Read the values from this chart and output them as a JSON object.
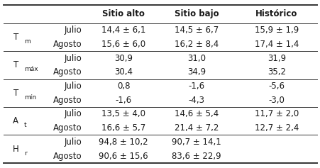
{
  "headers": [
    "Sitio alto",
    "Sitio bajo",
    "Histórico"
  ],
  "rows": [
    [
      "Julio",
      "14,4 ± 6,1",
      "14,5 ± 6,7",
      "15,9 ± 1,9"
    ],
    [
      "Agosto",
      "15,6 ± 6,0",
      "16,2 ± 8,4",
      "17,4 ± 1,4"
    ],
    [
      "Julio",
      "30,9",
      "31,0",
      "31,9"
    ],
    [
      "Agosto",
      "30,4",
      "34,9",
      "35,2"
    ],
    [
      "Julio",
      "0,8",
      "-1,6",
      "-5,6"
    ],
    [
      "Agosto",
      "-1,6",
      "-4,3",
      "-3,0"
    ],
    [
      "Julio",
      "13,5 ± 4,0",
      "14,6 ± 5,4",
      "11,7 ± 2,0"
    ],
    [
      "Agosto",
      "16,6 ± 5,7",
      "21,4 ± 7,2",
      "12,7 ± 2,4"
    ],
    [
      "Julio",
      "94,8 ± 10,2",
      "90,7 ± 14,1",
      ""
    ],
    [
      "Agosto",
      "90,6 ± 15,6",
      "83,6 ± 22,9",
      ""
    ]
  ],
  "row_group_labels": [
    [
      0,
      1,
      "T",
      "m"
    ],
    [
      2,
      3,
      "T",
      "máx"
    ],
    [
      4,
      5,
      "T",
      "mín"
    ],
    [
      6,
      7,
      "A",
      "t"
    ],
    [
      8,
      9,
      "H",
      "r"
    ]
  ],
  "group_separators_after": [
    1,
    3,
    5,
    7
  ],
  "background_color": "#ffffff",
  "text_color": "#1a1a1a",
  "line_color": "#333333",
  "fontsize": 8.5,
  "header_fontsize": 8.5,
  "figsize": [
    4.52,
    2.37
  ],
  "dpi": 100
}
